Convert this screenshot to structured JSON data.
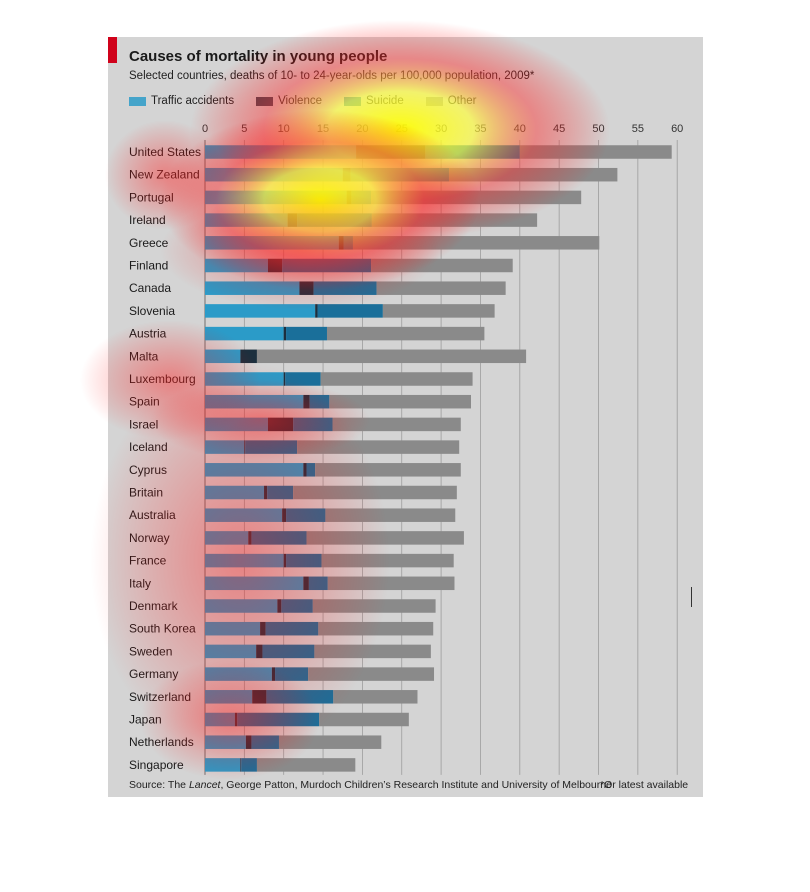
{
  "colors": {
    "panel_bg": "#d4d4d4",
    "accent": "#d0021b",
    "traffic": "#2b9bc8",
    "violence": "#1c2f3e",
    "suicide": "#1a6f9a",
    "other": "#8a8a8a",
    "gridline": "#ffffff"
  },
  "legend": [
    {
      "label": "Traffic accidents",
      "color": "#2b9bc8"
    },
    {
      "label": "Violence",
      "color": "#1c2f3e"
    },
    {
      "label": "Suicide",
      "color": "#1a6f9a"
    },
    {
      "label": "Other",
      "color": "#8a8a8a"
    }
  ],
  "footer": {
    "source_prefix": "Source: The ",
    "source_journal": "Lancet",
    "source_rest": ", George Patton, Murdoch Children’s Research Institute and University of Melbourne",
    "note": "*Or latest available"
  },
  "heatmap_overlay": true,
  "chart_data": {
    "type": "bar",
    "orientation": "horizontal",
    "stacked": true,
    "title": "Causes of mortality in young people",
    "subtitle": "Selected countries, deaths of 10- to 24-year-olds per 100,000 population, 2009*",
    "xlim": [
      0,
      60
    ],
    "xticks": [
      0,
      5,
      10,
      15,
      20,
      25,
      30,
      35,
      40,
      45,
      50,
      55,
      60
    ],
    "grid": true,
    "legend_position": "top-left",
    "categories": [
      "United States",
      "New Zealand",
      "Portugal",
      "Ireland",
      "Greece",
      "Finland",
      "Canada",
      "Slovenia",
      "Austria",
      "Malta",
      "Luxembourg",
      "Spain",
      "Israel",
      "Iceland",
      "Cyprus",
      "Britain",
      "Australia",
      "Norway",
      "France",
      "Italy",
      "Denmark",
      "South Korea",
      "Sweden",
      "Germany",
      "Switzerland",
      "Japan",
      "Netherlands",
      "Singapore"
    ],
    "series": [
      {
        "name": "Traffic accidents",
        "values": [
          19.2,
          17.5,
          18.0,
          10.5,
          17.0,
          8.0,
          12.0,
          14.0,
          10.0,
          4.5,
          10.0,
          12.5,
          8.0,
          5.0,
          12.5,
          7.5,
          9.8,
          5.5,
          10.0,
          12.5,
          9.2,
          7.0,
          6.5,
          8.5,
          6.0,
          3.8,
          5.2,
          4.5
        ]
      },
      {
        "name": "Violence",
        "values": [
          8.8,
          1.0,
          0.6,
          1.2,
          0.6,
          1.8,
          1.8,
          0.3,
          0.3,
          2.1,
          0.2,
          0.8,
          3.2,
          0.1,
          0.4,
          0.4,
          0.5,
          0.4,
          0.3,
          0.7,
          0.5,
          0.7,
          0.8,
          0.4,
          1.8,
          0.3,
          0.7,
          0.1
        ]
      },
      {
        "name": "Suicide",
        "values": [
          12.0,
          12.5,
          2.5,
          9.5,
          1.2,
          11.3,
          8.0,
          8.3,
          5.2,
          0.0,
          4.5,
          2.5,
          5.0,
          6.6,
          1.1,
          3.3,
          5.0,
          7.0,
          4.5,
          2.4,
          4.0,
          6.7,
          6.6,
          4.2,
          8.5,
          10.4,
          3.5,
          2.0
        ]
      },
      {
        "name": "Other",
        "values": [
          19.3,
          21.4,
          26.7,
          21.0,
          31.3,
          18.0,
          16.4,
          14.2,
          20.0,
          34.2,
          19.3,
          18.0,
          16.3,
          20.6,
          18.5,
          20.8,
          16.5,
          20.0,
          16.8,
          16.1,
          15.6,
          14.6,
          14.8,
          16.0,
          10.7,
          11.4,
          13.0,
          12.5
        ]
      }
    ]
  }
}
